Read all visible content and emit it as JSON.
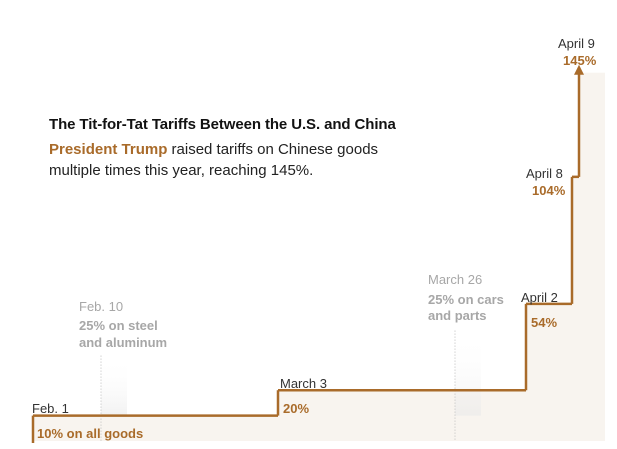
{
  "colors": {
    "accent": "#a96b2a",
    "fill": "#f8f4ef",
    "muted": "#a7a7a7"
  },
  "header": {
    "title": "The Tit-for-Tat Tariffs Between the U.S. and China",
    "subtitle_highlight": "President Trump",
    "subtitle_rest": " raised tariffs on Chinese goods multiple times this year, reaching 145%."
  },
  "chart_data": {
    "type": "area",
    "shape": "step",
    "title": "The Tit-for-Tat Tariffs Between the U.S. and China",
    "subtitle": "President Trump raised tariffs on Chinese goods multiple times this year, reaching 145%.",
    "x_unit": "date",
    "y_unit": "percent",
    "grid": false,
    "steps": [
      {
        "date": "Feb. 1",
        "value": 10,
        "value_label": "10% on all goods"
      },
      {
        "date": "March 3",
        "value": 20,
        "value_label": "20%"
      },
      {
        "date": "April 2",
        "value": 54,
        "value_label": "54%"
      },
      {
        "date": "April 8",
        "value": 104,
        "value_label": "104%"
      },
      {
        "date": "April 9",
        "value": 145,
        "value_label": "145%"
      }
    ],
    "annotations": [
      {
        "date": "Feb. 10",
        "line1": "25% on steel",
        "line2": "and aluminum"
      },
      {
        "date": "March 26",
        "line1": "25% on cars",
        "line2": "and parts"
      }
    ]
  }
}
